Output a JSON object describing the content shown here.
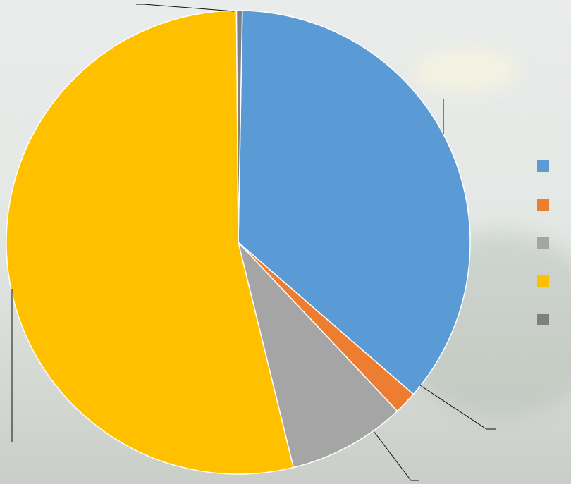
{
  "chart_data": {
    "type": "pie",
    "title": "",
    "start_angle_deg": 1,
    "slices": [
      {
        "label": "",
        "value": 36.1,
        "color": "#5B9BD5"
      },
      {
        "label": "",
        "value": 1.6,
        "color": "#ED7D31"
      },
      {
        "label": "",
        "value": 8.2,
        "color": "#A5A5A5"
      },
      {
        "label": "",
        "value": 53.7,
        "color": "#FFC000"
      },
      {
        "label": "",
        "value": 0.4,
        "color": "#7F7F7F"
      }
    ],
    "legend": {
      "position": "right",
      "entries": [
        "",
        "",
        "",
        "",
        ""
      ]
    },
    "data_labels": "none",
    "leader_lines": true
  },
  "colors": {
    "background": "#e6e9e7",
    "leader_line": "#111111"
  }
}
